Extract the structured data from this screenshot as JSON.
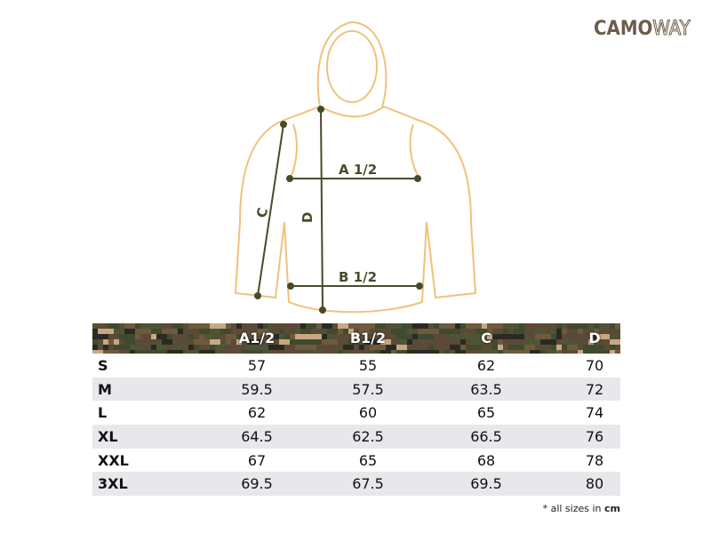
{
  "brand": {
    "part1": "CAMO",
    "part2": "WAY"
  },
  "diagram": {
    "labels": {
      "a": "A 1/2",
      "b": "B 1/2",
      "c": "C",
      "d": "D"
    }
  },
  "table": {
    "headers": [
      "",
      "A1/2",
      "B1/2",
      "C",
      "D"
    ],
    "rows": [
      [
        "S",
        "57",
        "55",
        "62",
        "70"
      ],
      [
        "M",
        "59.5",
        "57.5",
        "63.5",
        "72"
      ],
      [
        "L",
        "62",
        "60",
        "65",
        "74"
      ],
      [
        "XL",
        "64.5",
        "62.5",
        "66.5",
        "76"
      ],
      [
        "XXL",
        "67",
        "65",
        "68",
        "78"
      ],
      [
        "3XL",
        "69.5",
        "67.5",
        "69.5",
        "80"
      ]
    ]
  },
  "note": {
    "text": "* all sizes in ",
    "unit": "cm"
  },
  "colors": {
    "outline": "#f0c27a",
    "measure": "#4a4a2a",
    "brand": "#6b5d4a",
    "row_alt": "#e8e8ec"
  }
}
